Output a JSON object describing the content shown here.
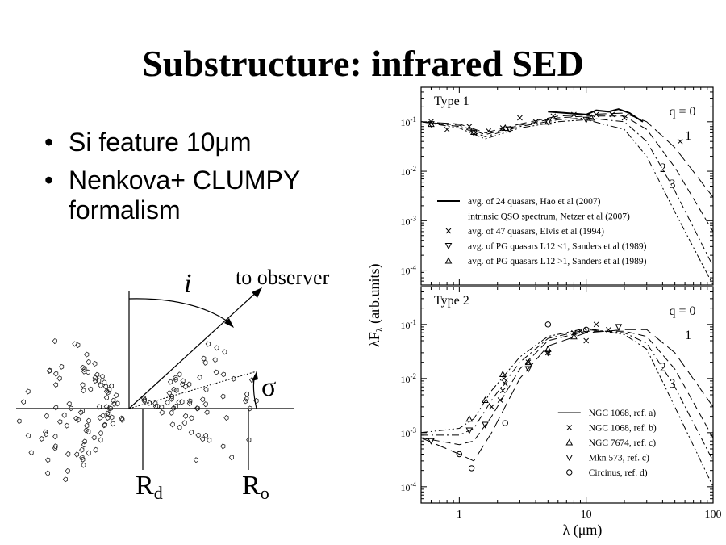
{
  "slide": {
    "title": "Substructure: infrared SED",
    "bullets": [
      "Si feature 10μm",
      "Nenkova+ CLUMPY formalism"
    ]
  },
  "cartoon": {
    "inclination_label": "i",
    "observer_label": "to observer",
    "sigma_label": "σ",
    "rd_label": "R",
    "rd_sub": "d",
    "ro_label": "R",
    "ro_sub": "o"
  },
  "chart_data": [
    {
      "type": "line",
      "panel": "Type 1",
      "title": "",
      "xlabel": "λ (μm)",
      "ylabel": "λFλ (arb.units)",
      "xscale": "log",
      "yscale": "log",
      "xlim": [
        0.5,
        100
      ],
      "ylim": [
        5e-05,
        0.5
      ],
      "x_ticks": [
        "1",
        "10",
        "100"
      ],
      "y_ticks": [
        "10-4",
        "10-3",
        "10-2",
        "10-1"
      ],
      "curve_labels": [
        "q = 0",
        "1",
        "2",
        "3"
      ],
      "legend": [
        {
          "label": "avg. of 24 quasars, Hao et al (2007)",
          "marker": "thick-line"
        },
        {
          "label": "intrinsic QSO spectrum, Netzer et al (2007)",
          "marker": "thin-line"
        },
        {
          "label": "avg. of 47 quasars, Elvis et al (1994)",
          "marker": "x"
        },
        {
          "label": "avg. of PG quasars L12 <1, Sanders et al (1989)",
          "marker": "triangle-down"
        },
        {
          "label": "avg. of PG quasars L12 >1, Sanders et al (1989)",
          "marker": "triangle-up"
        }
      ],
      "series": [
        {
          "name": "q = 0",
          "style": "long-dash",
          "x": [
            0.5,
            1,
            1.6,
            3,
            6,
            10,
            20,
            30,
            50,
            100
          ],
          "y": [
            0.1,
            0.09,
            0.06,
            0.09,
            0.13,
            0.14,
            0.15,
            0.1,
            0.03,
            0.003
          ]
        },
        {
          "name": "1",
          "style": "dash",
          "x": [
            0.5,
            1,
            1.6,
            3,
            6,
            10,
            20,
            30,
            50,
            100
          ],
          "y": [
            0.1,
            0.085,
            0.055,
            0.085,
            0.12,
            0.13,
            0.13,
            0.07,
            0.012,
            0.0006
          ]
        },
        {
          "name": "2",
          "style": "dash-dot",
          "x": [
            0.5,
            1,
            1.6,
            3,
            6,
            10,
            20,
            30,
            50,
            100
          ],
          "y": [
            0.1,
            0.08,
            0.05,
            0.08,
            0.11,
            0.12,
            0.1,
            0.04,
            0.004,
            0.00012
          ]
        },
        {
          "name": "3",
          "style": "dash-dot-dot",
          "x": [
            0.5,
            1,
            1.6,
            3,
            6,
            10,
            20,
            30,
            50,
            100
          ],
          "y": [
            0.1,
            0.075,
            0.045,
            0.075,
            0.1,
            0.11,
            0.07,
            0.02,
            0.0015,
            5e-05
          ]
        },
        {
          "name": "avg. of 24 quasars, Hao et al (2007)",
          "style": "solid-thick",
          "x": [
            5,
            7,
            10,
            12,
            15,
            18,
            22,
            25,
            28
          ],
          "y": [
            0.16,
            0.15,
            0.14,
            0.17,
            0.16,
            0.18,
            0.15,
            0.12,
            0.1
          ]
        },
        {
          "name": "avg. of 47 quasars, Elvis et al (1994)",
          "marker": "x",
          "x": [
            0.6,
            0.8,
            1.2,
            1.7,
            2.2,
            3,
            4,
            5.5,
            8,
            12,
            16,
            20,
            55
          ],
          "y": [
            0.1,
            0.07,
            0.08,
            0.065,
            0.075,
            0.12,
            0.1,
            0.13,
            0.14,
            0.14,
            0.14,
            0.12,
            0.04
          ]
        },
        {
          "name": "avg. of PG quasars L12 <1, Sanders et al (1989)",
          "marker": "triangle-down",
          "x": [
            0.6,
            1.3,
            2.5,
            5,
            10
          ],
          "y": [
            0.09,
            0.06,
            0.07,
            0.1,
            0.11
          ]
        },
        {
          "name": "avg. of PG quasars L12 >1, Sanders et al (1989)",
          "marker": "triangle-up",
          "x": [
            0.6,
            1.3,
            2.3,
            5,
            11
          ],
          "y": [
            0.09,
            0.062,
            0.075,
            0.1,
            0.12
          ]
        }
      ]
    },
    {
      "type": "line",
      "panel": "Type 2",
      "title": "",
      "xlabel": "λ (μm)",
      "ylabel": "λFλ (arb.units)",
      "xscale": "log",
      "yscale": "log",
      "xlim": [
        0.5,
        100
      ],
      "ylim": [
        5e-05,
        0.5
      ],
      "x_ticks": [
        "1",
        "10",
        "100"
      ],
      "y_ticks": [
        "10-4",
        "10-3",
        "10-2",
        "10-1"
      ],
      "curve_labels": [
        "q = 0",
        "1",
        "2",
        "3"
      ],
      "legend": [
        {
          "label": "NGC 1068, ref. a)",
          "marker": "line"
        },
        {
          "label": "NGC 1068, ref. b)",
          "marker": "x"
        },
        {
          "label": "NGC 7674, ref. c)",
          "marker": "triangle-up"
        },
        {
          "label": "Mkn 573, ref. c)",
          "marker": "triangle-down"
        },
        {
          "label": "Circinus, ref. d)",
          "marker": "circle"
        }
      ],
      "series": [
        {
          "name": "q = 0",
          "style": "long-dash",
          "x": [
            0.5,
            1,
            1.3,
            1.8,
            3,
            5,
            10,
            20,
            30,
            50,
            100
          ],
          "y": [
            0.0008,
            0.0004,
            0.0003,
            0.001,
            0.01,
            0.04,
            0.07,
            0.08,
            0.08,
            0.03,
            0.003
          ]
        },
        {
          "name": "1",
          "style": "dash",
          "x": [
            0.5,
            1,
            1.3,
            1.8,
            3,
            5,
            10,
            20,
            30,
            50,
            100
          ],
          "y": [
            0.0008,
            0.0006,
            0.0007,
            0.002,
            0.015,
            0.05,
            0.075,
            0.075,
            0.06,
            0.015,
            0.0008
          ]
        },
        {
          "name": "2",
          "style": "dash-dot",
          "x": [
            0.5,
            1,
            1.3,
            1.8,
            3,
            5,
            10,
            20,
            30,
            50,
            100
          ],
          "y": [
            0.0009,
            0.0009,
            0.0012,
            0.004,
            0.02,
            0.055,
            0.08,
            0.07,
            0.045,
            0.007,
            0.0003
          ]
        },
        {
          "name": "3",
          "style": "dash-dot-dot",
          "x": [
            0.5,
            1,
            1.3,
            1.8,
            3,
            5,
            10,
            20,
            30,
            50,
            100
          ],
          "y": [
            0.001,
            0.0012,
            0.0018,
            0.006,
            0.025,
            0.06,
            0.085,
            0.065,
            0.035,
            0.003,
            0.0001
          ]
        },
        {
          "name": "NGC 1068, ref. b)",
          "marker": "x",
          "x": [
            1.8,
            2.1,
            2.2,
            2.3,
            2.25,
            3.5,
            5,
            8,
            9,
            10,
            12,
            15
          ],
          "y": [
            0.003,
            0.004,
            0.006,
            0.008,
            0.01,
            0.02,
            0.03,
            0.07,
            0.075,
            0.05,
            0.1,
            0.08
          ]
        },
        {
          "name": "NGC 7674, ref. c)",
          "marker": "triangle-up",
          "x": [
            1.2,
            1.6,
            2.2,
            3.5,
            5,
            8
          ],
          "y": [
            0.0018,
            0.004,
            0.012,
            0.02,
            0.035,
            0.06
          ]
        },
        {
          "name": "Mkn 573, ref. c)",
          "marker": "triangle-down",
          "x": [
            0.6,
            1.2,
            1.6,
            3.5,
            5,
            18
          ],
          "y": [
            0.0007,
            0.0011,
            0.0014,
            0.015,
            0.03,
            0.09
          ]
        },
        {
          "name": "Circinus, ref. d)",
          "marker": "circle",
          "x": [
            1,
            1.25,
            2.3,
            5,
            10
          ],
          "y": [
            0.0004,
            0.00022,
            0.0015,
            0.1,
            0.08
          ]
        }
      ]
    }
  ]
}
